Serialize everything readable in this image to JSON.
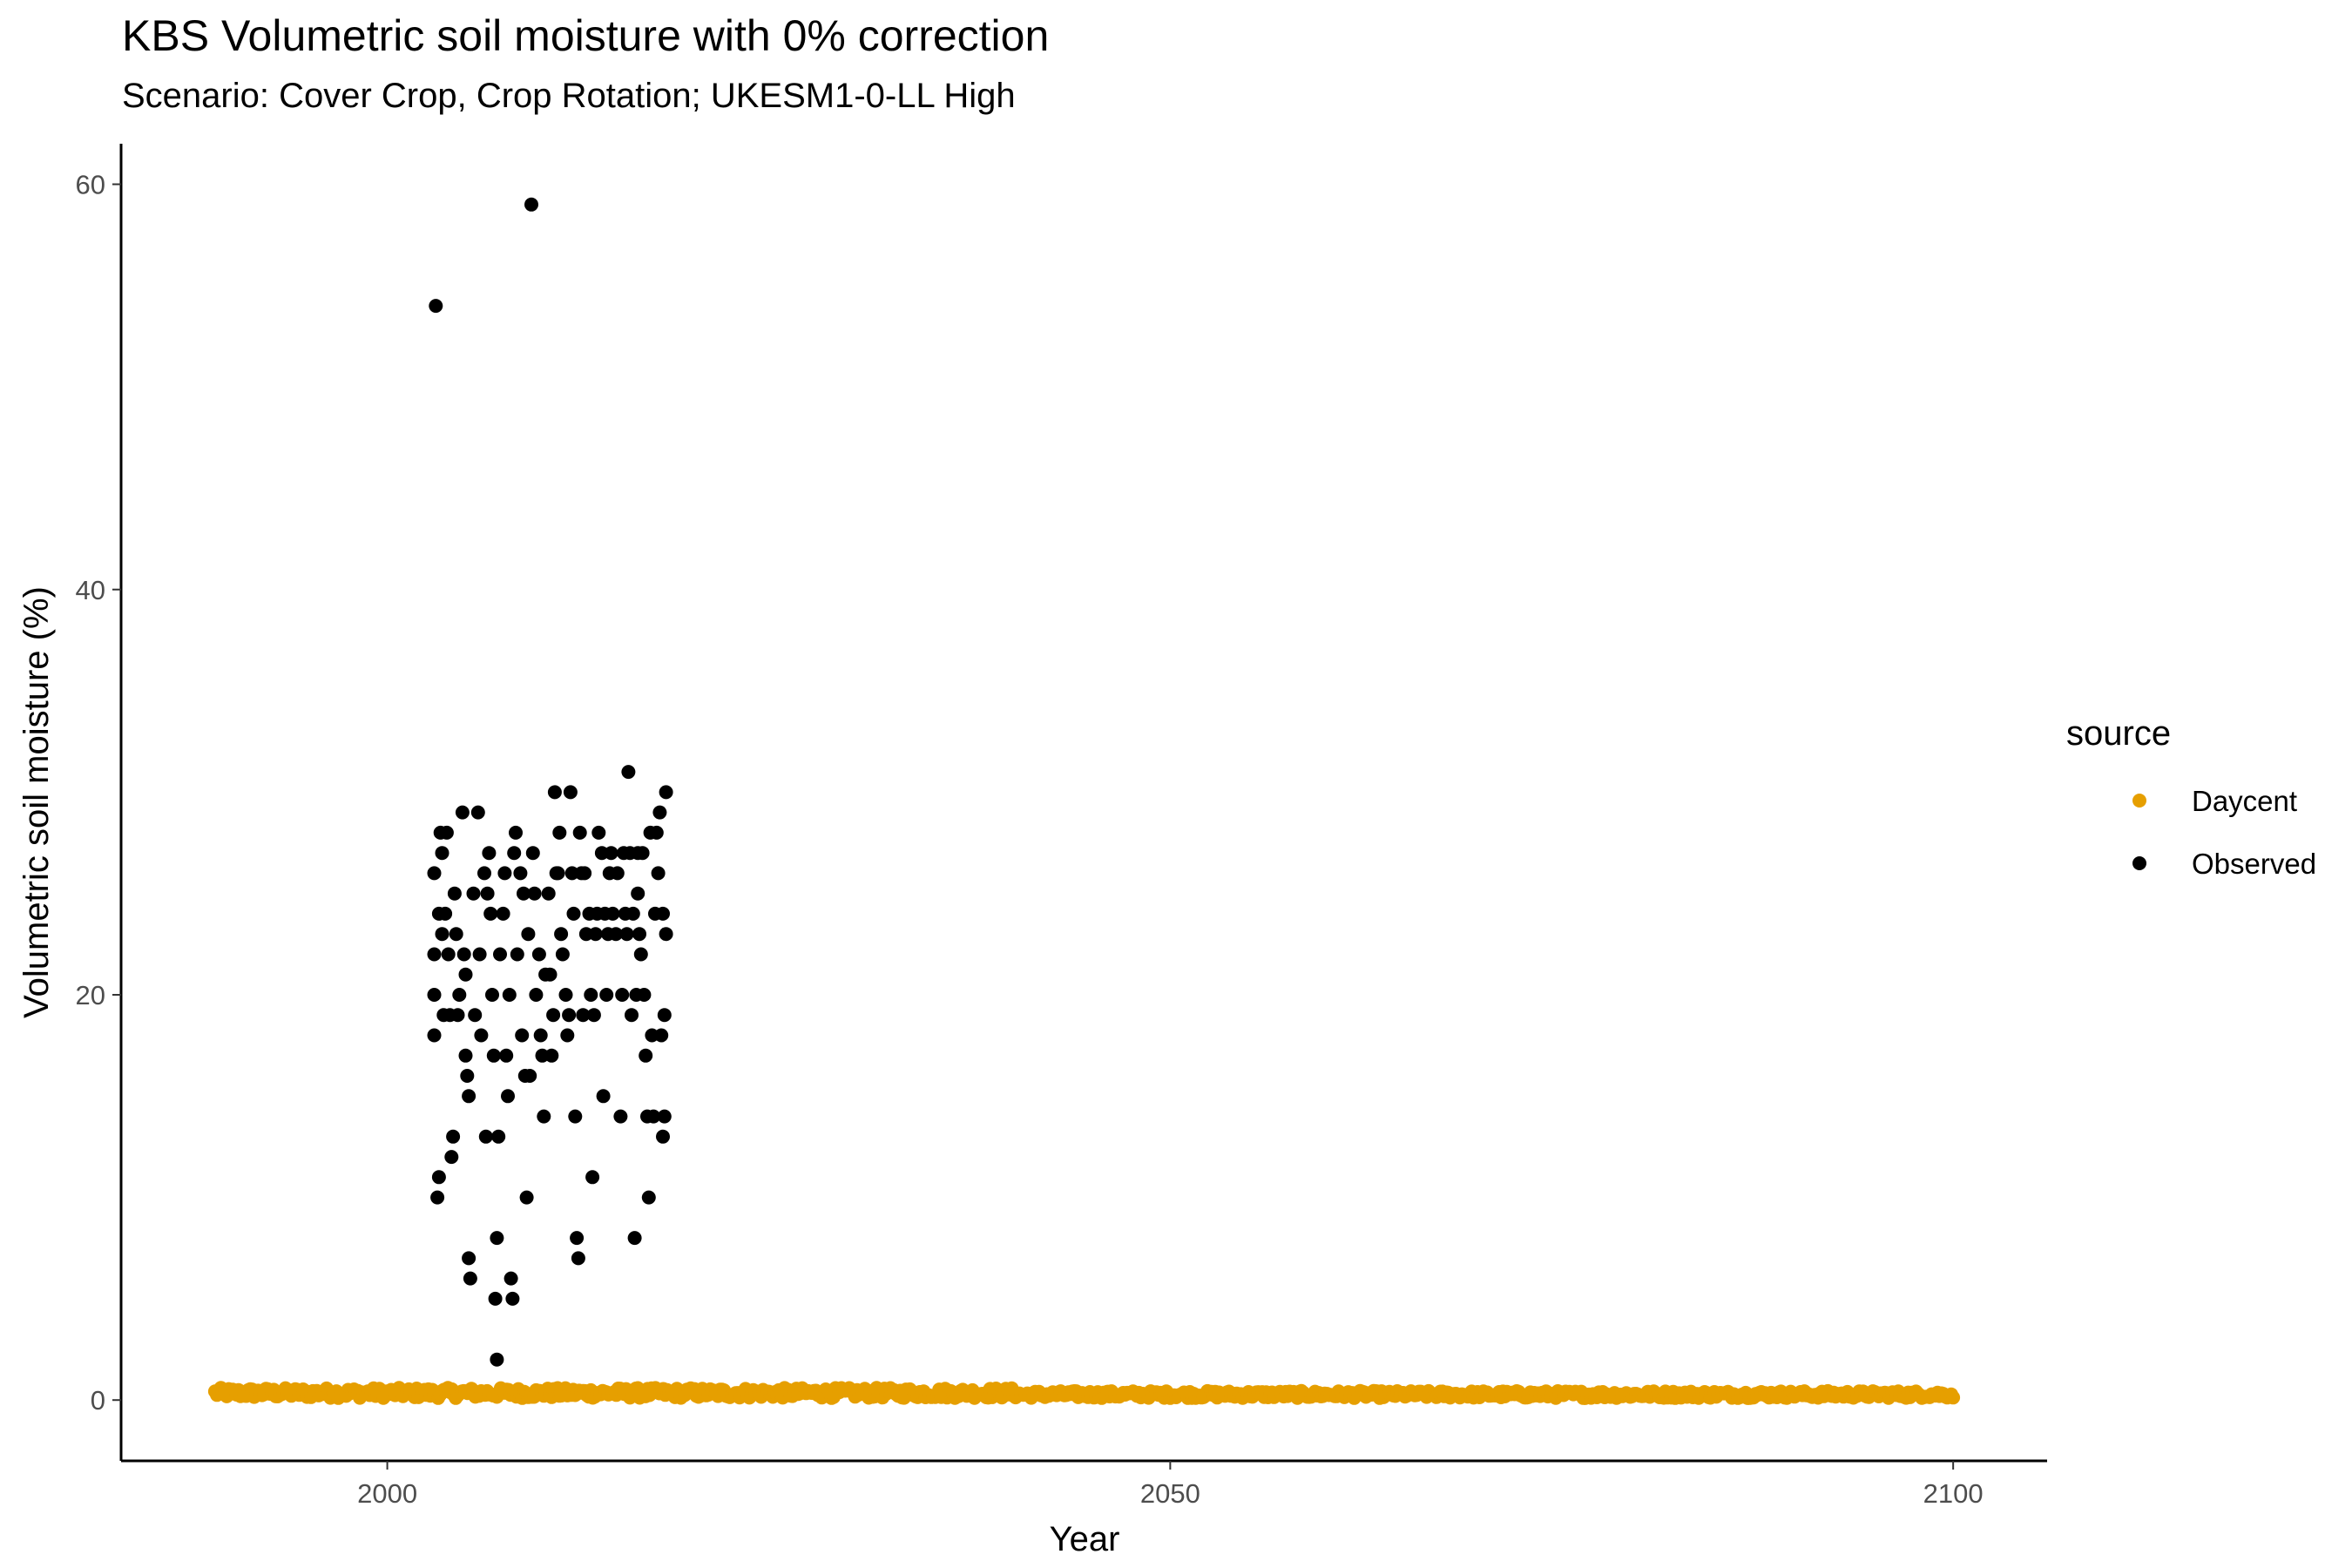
{
  "chart_data": {
    "type": "scatter",
    "title": "KBS Volumetric soil moisture with 0% correction",
    "subtitle": "Scenario: Cover Crop, Crop Rotation; UKESM1-0-LL High",
    "xlabel": "Year",
    "ylabel": "Volumetric soil moisture (%)",
    "xlim": [
      1983,
      2106
    ],
    "ylim": [
      -3,
      62
    ],
    "x_ticks": [
      2000,
      2050,
      2100
    ],
    "y_ticks": [
      0,
      20,
      40,
      60
    ],
    "grid": false,
    "legend": {
      "title": "source",
      "position": "right"
    },
    "series": [
      {
        "name": "Daycent",
        "color": "#E69F00",
        "x_range": [
          1989,
          2100
        ],
        "y_approx": [
          0.1,
          0.6
        ],
        "note_points": "daily simulated values, about 0.2-0.5"
      },
      {
        "name": "Observed",
        "color": "#000000",
        "points": [
          [
            2003.1,
            54
          ],
          [
            2009.2,
            59
          ],
          [
            2003.0,
            26
          ],
          [
            2003.0,
            22
          ],
          [
            2003.0,
            20
          ],
          [
            2003.0,
            18
          ],
          [
            2003.2,
            10
          ],
          [
            2003.3,
            11
          ],
          [
            2003.3,
            24
          ],
          [
            2003.4,
            28
          ],
          [
            2003.5,
            27
          ],
          [
            2003.5,
            23
          ],
          [
            2003.6,
            19
          ],
          [
            2003.7,
            24
          ],
          [
            2003.8,
            28
          ],
          [
            2003.9,
            22
          ],
          [
            2004.0,
            19
          ],
          [
            2004.1,
            12
          ],
          [
            2004.2,
            13
          ],
          [
            2004.3,
            25
          ],
          [
            2004.4,
            23
          ],
          [
            2004.5,
            19
          ],
          [
            2004.6,
            20
          ],
          [
            2004.8,
            29
          ],
          [
            2004.9,
            22
          ],
          [
            2005.0,
            21
          ],
          [
            2005.0,
            17
          ],
          [
            2005.1,
            16
          ],
          [
            2005.2,
            15
          ],
          [
            2005.2,
            7
          ],
          [
            2005.3,
            6
          ],
          [
            2005.5,
            25
          ],
          [
            2005.6,
            19
          ],
          [
            2005.8,
            29
          ],
          [
            2005.9,
            22
          ],
          [
            2006.0,
            18
          ],
          [
            2006.2,
            26
          ],
          [
            2006.3,
            13
          ],
          [
            2006.4,
            25
          ],
          [
            2006.5,
            27
          ],
          [
            2006.6,
            24
          ],
          [
            2006.7,
            20
          ],
          [
            2006.8,
            17
          ],
          [
            2006.9,
            5
          ],
          [
            2007.0,
            2
          ],
          [
            2007.0,
            8
          ],
          [
            2007.1,
            13
          ],
          [
            2007.2,
            22
          ],
          [
            2007.4,
            24
          ],
          [
            2007.5,
            26
          ],
          [
            2007.6,
            17
          ],
          [
            2007.7,
            15
          ],
          [
            2007.8,
            20
          ],
          [
            2007.9,
            6
          ],
          [
            2008.0,
            5
          ],
          [
            2008.1,
            27
          ],
          [
            2008.2,
            28
          ],
          [
            2008.3,
            22
          ],
          [
            2008.5,
            26
          ],
          [
            2008.6,
            18
          ],
          [
            2008.7,
            25
          ],
          [
            2008.8,
            16
          ],
          [
            2008.9,
            10
          ],
          [
            2009.0,
            23
          ],
          [
            2009.1,
            16
          ],
          [
            2009.3,
            27
          ],
          [
            2009.4,
            25
          ],
          [
            2009.5,
            20
          ],
          [
            2009.7,
            22
          ],
          [
            2009.8,
            18
          ],
          [
            2009.9,
            17
          ],
          [
            2010.0,
            14
          ],
          [
            2010.1,
            21
          ],
          [
            2010.3,
            25
          ],
          [
            2010.4,
            21
          ],
          [
            2010.5,
            17
          ],
          [
            2010.6,
            19
          ],
          [
            2010.7,
            30
          ],
          [
            2010.8,
            26
          ],
          [
            2010.9,
            26
          ],
          [
            2011.0,
            28
          ],
          [
            2011.1,
            23
          ],
          [
            2011.2,
            22
          ],
          [
            2011.4,
            20
          ],
          [
            2011.5,
            18
          ],
          [
            2011.6,
            19
          ],
          [
            2011.7,
            30
          ],
          [
            2011.8,
            26
          ],
          [
            2011.9,
            24
          ],
          [
            2012.0,
            14
          ],
          [
            2012.1,
            8
          ],
          [
            2012.2,
            7
          ],
          [
            2012.3,
            28
          ],
          [
            2012.4,
            26
          ],
          [
            2012.5,
            19
          ],
          [
            2012.6,
            26
          ],
          [
            2012.7,
            23
          ],
          [
            2012.9,
            24
          ],
          [
            2013.0,
            20
          ],
          [
            2013.1,
            11
          ],
          [
            2013.2,
            19
          ],
          [
            2013.3,
            23
          ],
          [
            2013.4,
            24
          ],
          [
            2013.5,
            28
          ],
          [
            2013.7,
            27
          ],
          [
            2013.8,
            15
          ],
          [
            2013.9,
            24
          ],
          [
            2014.0,
            20
          ],
          [
            2014.1,
            23
          ],
          [
            2014.2,
            26
          ],
          [
            2014.3,
            27
          ],
          [
            2014.4,
            24
          ],
          [
            2014.6,
            23
          ],
          [
            2014.7,
            26
          ],
          [
            2014.9,
            14
          ],
          [
            2015.0,
            20
          ],
          [
            2015.1,
            27
          ],
          [
            2015.2,
            24
          ],
          [
            2015.3,
            23
          ],
          [
            2015.4,
            31
          ],
          [
            2015.5,
            27
          ],
          [
            2015.6,
            19
          ],
          [
            2015.7,
            24
          ],
          [
            2015.8,
            8
          ],
          [
            2015.9,
            20
          ],
          [
            2016.0,
            27
          ],
          [
            2016.0,
            25
          ],
          [
            2016.1,
            23
          ],
          [
            2016.2,
            22
          ],
          [
            2016.3,
            27
          ],
          [
            2016.4,
            20
          ],
          [
            2016.5,
            17
          ],
          [
            2016.6,
            14
          ],
          [
            2016.7,
            10
          ],
          [
            2016.8,
            28
          ],
          [
            2016.9,
            18
          ],
          [
            2017.0,
            14
          ],
          [
            2017.1,
            24
          ],
          [
            2017.2,
            28
          ],
          [
            2017.3,
            26
          ],
          [
            2017.4,
            29
          ],
          [
            2017.5,
            18
          ],
          [
            2017.6,
            24
          ],
          [
            2017.6,
            13
          ],
          [
            2017.7,
            19
          ],
          [
            2017.7,
            14
          ],
          [
            2017.8,
            30
          ],
          [
            2017.8,
            23
          ]
        ]
      }
    ]
  }
}
